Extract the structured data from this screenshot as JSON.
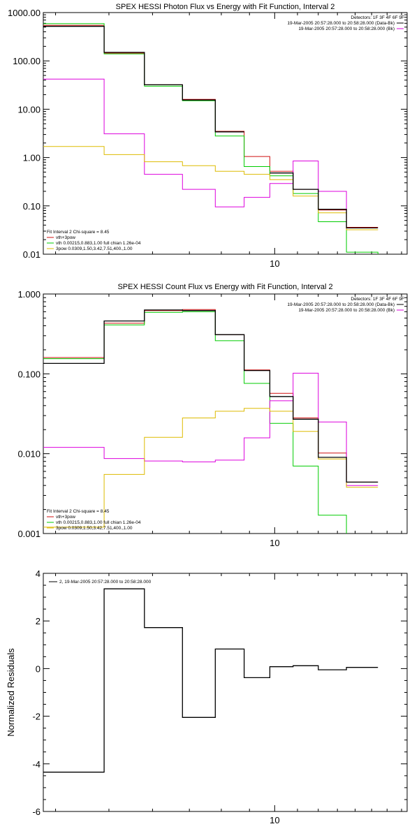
{
  "chart_data": [
    {
      "type": "line",
      "title": "SPEX HESSI Photon Flux vs Energy with Fit Function, Interval 2",
      "xscale": "log",
      "yscale": "log",
      "xlim": [
        3.8,
        17.4
      ],
      "ylim": [
        0.01,
        1000
      ],
      "xticks": [
        {
          "v": 10,
          "label": "10"
        }
      ],
      "yticks": [
        {
          "v": 1000,
          "label": "1000.00"
        },
        {
          "v": 100,
          "label": "100.00"
        },
        {
          "v": 10,
          "label": "10.00"
        },
        {
          "v": 1,
          "label": "1.00"
        },
        {
          "v": 0.1,
          "label": "0.10"
        },
        {
          "v": 0.01,
          "label": "0.01"
        }
      ],
      "edges": [
        3.8,
        4.9,
        5.8,
        6.8,
        7.8,
        8.8,
        9.8,
        10.8,
        12.0,
        13.5,
        15.4,
        17.4
      ],
      "series": [
        {
          "color": "#000000",
          "values": [
            520,
            150,
            32,
            15.5,
            3.4,
            null,
            0.48,
            0.22,
            0.085,
            0.035,
            null
          ]
        },
        {
          "color": "#d01010",
          "values": [
            545,
            145,
            32,
            16,
            3.5,
            1.05,
            0.52,
            0.22,
            0.082,
            0.036,
            null
          ]
        },
        {
          "color": "#00cc00",
          "values": [
            590,
            140,
            30,
            15,
            2.8,
            0.65,
            0.42,
            0.18,
            0.047,
            0.011,
            0.0065
          ]
        },
        {
          "color": "#dd00dd",
          "values": [
            42,
            3.1,
            0.45,
            0.22,
            0.095,
            0.15,
            0.29,
            0.85,
            0.2,
            0.032,
            null
          ]
        },
        {
          "color": "#ddbb00",
          "values": [
            1.7,
            1.15,
            0.82,
            0.68,
            0.52,
            0.45,
            0.35,
            0.16,
            0.072,
            0.032,
            null
          ]
        }
      ],
      "legend_top": {
        "detectors": "Detectors: 1F 3F 4F 6F 9F",
        "lines": [
          {
            "text": "19-Mar-2005 20:57:28.000 to 20:58:28.000 (Data-Bk)",
            "color": "#000000"
          },
          {
            "text": "19-Mar-2005 20:57:28.000 to 20:58:28.000 (Bk)",
            "color": "#dd00dd"
          }
        ]
      },
      "legend_fit": {
        "header": "Fit Interval 2   Chi-square = 8.45",
        "lines": [
          {
            "text": "vth+3pow",
            "color": "#d01010"
          },
          {
            "text": "vth 0.00215,0.883,1.00   full chian 1.26e-04",
            "color": "#00cc00"
          },
          {
            "text": "3pow 0.0309,1.50,3.42,7.51,400.,1.00",
            "color": "#ddbb00"
          }
        ]
      }
    },
    {
      "type": "line",
      "title": "SPEX HESSI Count Flux vs Energy with Fit Function, Interval 2",
      "xscale": "log",
      "yscale": "log",
      "xlim": [
        3.8,
        17.4
      ],
      "ylim": [
        0.001,
        1
      ],
      "xticks": [
        {
          "v": 10,
          "label": "10"
        }
      ],
      "yticks": [
        {
          "v": 1,
          "label": "1.000"
        },
        {
          "v": 0.1,
          "label": "0.100"
        },
        {
          "v": 0.01,
          "label": "0.010"
        },
        {
          "v": 0.001,
          "label": "0.001"
        }
      ],
      "edges": [
        3.8,
        4.9,
        5.8,
        6.8,
        7.8,
        8.8,
        9.8,
        10.8,
        12.0,
        13.5,
        15.4,
        17.4
      ],
      "series": [
        {
          "color": "#000000",
          "values": [
            0.135,
            0.46,
            0.63,
            0.62,
            0.31,
            0.11,
            0.052,
            0.027,
            0.009,
            0.0044,
            null
          ]
        },
        {
          "color": "#d01010",
          "values": [
            0.16,
            0.43,
            0.62,
            0.64,
            0.31,
            0.112,
            0.057,
            0.028,
            0.0102,
            0.0044,
            null
          ]
        },
        {
          "color": "#00cc00",
          "values": [
            0.155,
            0.41,
            0.59,
            0.6,
            0.26,
            0.076,
            0.024,
            0.007,
            0.0017,
            0.00095,
            null
          ]
        },
        {
          "color": "#dd00dd",
          "values": [
            0.012,
            0.0087,
            0.0081,
            0.0079,
            0.0083,
            0.0158,
            0.046,
            0.102,
            0.025,
            0.004,
            null
          ]
        },
        {
          "color": "#ddbb00",
          "values": [
            0.0012,
            0.0055,
            0.016,
            0.028,
            0.034,
            0.037,
            0.034,
            0.019,
            0.0086,
            0.0038,
            null
          ]
        }
      ],
      "legend_top": {
        "detectors": "Detectors: 1F 3F 4F 6F 9F",
        "lines": [
          {
            "text": "19-Mar-2005 20:57:28.000 to 20:58:28.000 (Data-Bk)",
            "color": "#000000"
          },
          {
            "text": "19-Mar-2005 20:57:28.000 to 20:58:28.000 (Bk)",
            "color": "#dd00dd"
          }
        ]
      },
      "legend_fit": {
        "header": "Fit Interval 2   Chi-square = 8.45",
        "lines": [
          {
            "text": "vth+3pow",
            "color": "#d01010"
          },
          {
            "text": "vth 0.00215,0.883,1.00   full chian 1.26e-04",
            "color": "#00cc00"
          },
          {
            "text": "3pow 0.0309,1.50,3.42,7.51,400.,1.00",
            "color": "#ddbb00"
          }
        ]
      }
    },
    {
      "type": "line",
      "title": "",
      "ylabel": "Normalized Residuals",
      "xscale": "log",
      "yscale": "linear",
      "xlim": [
        3.8,
        17.4
      ],
      "ylim": [
        -6,
        4
      ],
      "xticks": [
        {
          "v": 10,
          "label": "10"
        }
      ],
      "yticks": [
        {
          "v": 4,
          "label": "4"
        },
        {
          "v": 2,
          "label": "2"
        },
        {
          "v": 0,
          "label": "0"
        },
        {
          "v": -2,
          "label": "-2"
        },
        {
          "v": -4,
          "label": "-4"
        },
        {
          "v": -6,
          "label": "-6"
        }
      ],
      "edges": [
        3.8,
        4.9,
        5.8,
        6.8,
        7.8,
        8.8,
        9.8,
        10.8,
        12.0,
        13.5,
        15.4,
        17.4
      ],
      "series": [
        {
          "color": "#000000",
          "values": [
            -4.35,
            3.35,
            1.72,
            -2.05,
            0.82,
            -0.38,
            0.08,
            0.12,
            -0.05,
            0.05,
            null
          ]
        }
      ],
      "legend_residual": "2, 19-Mar-2005 20:57:28.000 to 20:58:28.000"
    }
  ]
}
